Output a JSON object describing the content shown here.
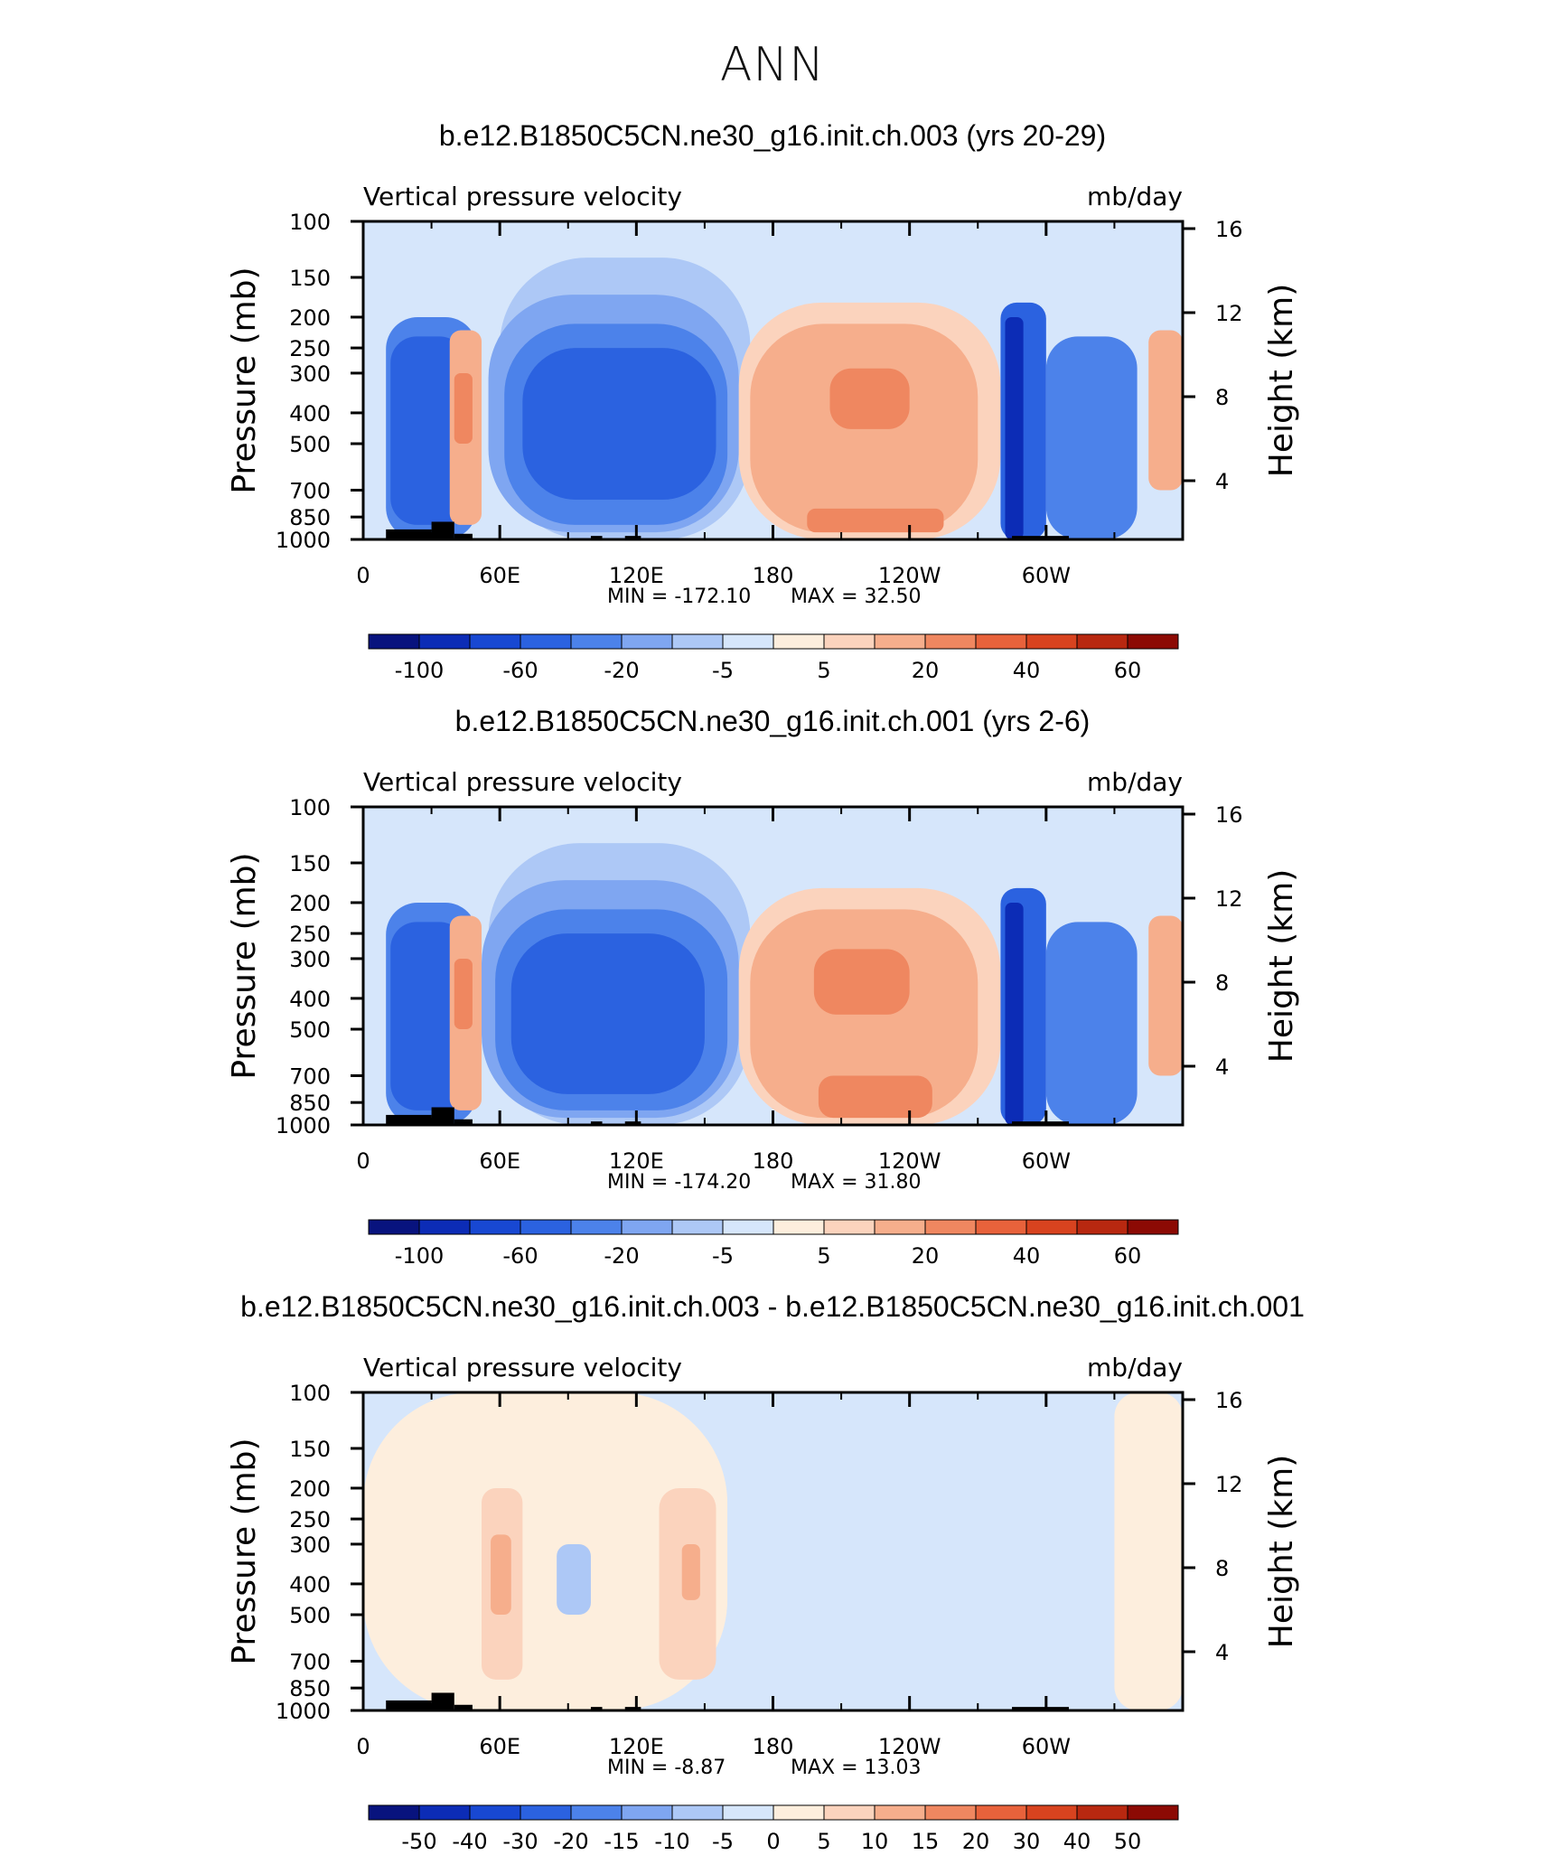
{
  "page_title": "ANN",
  "units_reference": {
    "x_ticks": [
      "0",
      "60E",
      "120E",
      "180",
      "120W",
      "60W"
    ],
    "pressure_ticks": [
      100,
      150,
      200,
      250,
      300,
      400,
      500,
      700,
      850,
      1000
    ],
    "height_ticks": [
      16,
      12,
      8,
      4
    ]
  },
  "colors": {
    "levels_abs": [
      "#08137e",
      "#0c2cb6",
      "#1848d2",
      "#2b62e0",
      "#4c82ea",
      "#7fa6f1",
      "#adc8f6",
      "#d6e6fb",
      "#fdeedd",
      "#fbd3bd",
      "#f6ae8c",
      "#ef8760",
      "#e8623b",
      "#d8431f",
      "#b82810",
      "#8c0a04"
    ],
    "mountain": "#000000"
  },
  "chart_data": [
    {
      "type": "heatmap",
      "title": "b.e12.B1850C5CN.ne30_g16.init.ch.003 (yrs 20-29)",
      "left_label": "Vertical pressure velocity",
      "right_label": "mb/day",
      "ylabel": "Pressure (mb)",
      "y2label": "Height (km)",
      "x_ticks": [
        "0",
        "60E",
        "120E",
        "180",
        "120W",
        "60W"
      ],
      "y_ticks": [
        "100",
        "150",
        "200",
        "250",
        "300",
        "400",
        "500",
        "700",
        "850",
        "1000"
      ],
      "y2_ticks": [
        "16",
        "12",
        "8",
        "4"
      ],
      "min_text": "MIN =  -172.10",
      "max_text": "MAX =   32.50",
      "min": -172.1,
      "max": 32.5,
      "colorbar_labels": [
        "-100",
        "-60",
        "-20",
        "-5",
        "5",
        "20",
        "40",
        "60"
      ]
    },
    {
      "type": "heatmap",
      "title": "b.e12.B1850C5CN.ne30_g16.init.ch.001 (yrs 2-6)",
      "left_label": "Vertical pressure velocity",
      "right_label": "mb/day",
      "ylabel": "Pressure (mb)",
      "y2label": "Height (km)",
      "x_ticks": [
        "0",
        "60E",
        "120E",
        "180",
        "120W",
        "60W"
      ],
      "y_ticks": [
        "100",
        "150",
        "200",
        "250",
        "300",
        "400",
        "500",
        "700",
        "850",
        "1000"
      ],
      "y2_ticks": [
        "16",
        "12",
        "8",
        "4"
      ],
      "min_text": "MIN =  -174.20",
      "max_text": "MAX =   31.80",
      "min": -174.2,
      "max": 31.8,
      "colorbar_labels": [
        "-100",
        "-60",
        "-20",
        "-5",
        "5",
        "20",
        "40",
        "60"
      ]
    },
    {
      "type": "heatmap",
      "title": "b.e12.B1850C5CN.ne30_g16.init.ch.003 - b.e12.B1850C5CN.ne30_g16.init.ch.001",
      "left_label": "Vertical pressure velocity",
      "right_label": "mb/day",
      "ylabel": "Pressure (mb)",
      "y2label": "Height (km)",
      "x_ticks": [
        "0",
        "60E",
        "120E",
        "180",
        "120W",
        "60W"
      ],
      "y_ticks": [
        "100",
        "150",
        "200",
        "250",
        "300",
        "400",
        "500",
        "700",
        "850",
        "1000"
      ],
      "y2_ticks": [
        "16",
        "12",
        "8",
        "4"
      ],
      "min_text": "MIN =   -8.87",
      "max_text": "MAX =   13.03",
      "min": -8.87,
      "max": 13.03,
      "colorbar_labels": [
        "-50",
        "-40",
        "-30",
        "-20",
        "-15",
        "-10",
        "-5",
        "0",
        "5",
        "10",
        "15",
        "20",
        "30",
        "40",
        "50"
      ]
    }
  ]
}
